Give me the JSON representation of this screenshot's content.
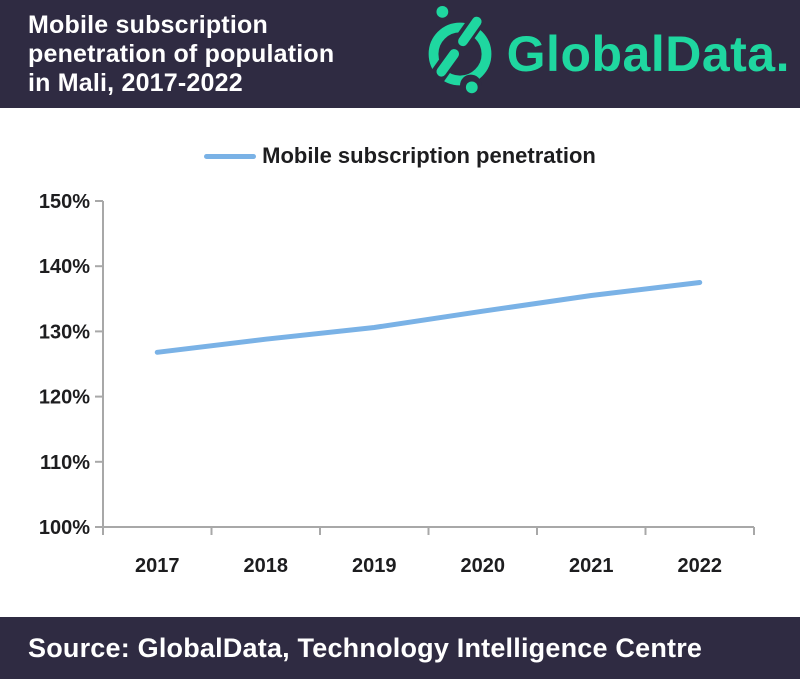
{
  "theme": {
    "header_bg": "#2f2b42",
    "logo_green": "#1fd7a0",
    "line_blue": "#7ab2e6",
    "axis_gray": "#a8a8a8",
    "text_dark": "#1d1d1f"
  },
  "header": {
    "title_lines": [
      "Mobile subscription",
      "penetration of population",
      "in Mali, 2017-2022"
    ],
    "logo_text": "GlobalData."
  },
  "legend": {
    "label": "Mobile subscription penetration",
    "swatch_color": "#7ab2e6"
  },
  "chart_data": {
    "type": "line",
    "title": "Mobile subscription penetration of population in Mali, 2017-2022",
    "categories": [
      "2017",
      "2018",
      "2019",
      "2020",
      "2021",
      "2022"
    ],
    "series": [
      {
        "name": "Mobile subscription penetration",
        "color": "#7ab2e6",
        "values": [
          126.8,
          128.8,
          130.6,
          133.1,
          135.5,
          137.5
        ]
      }
    ],
    "xlabel": "",
    "ylabel": "",
    "ylim": [
      100,
      150
    ],
    "ytick_step": 10,
    "ytick_suffix": "%",
    "grid": false,
    "legend_position": "top"
  },
  "footer": {
    "source": "Source: GlobalData, Technology Intelligence Centre"
  }
}
